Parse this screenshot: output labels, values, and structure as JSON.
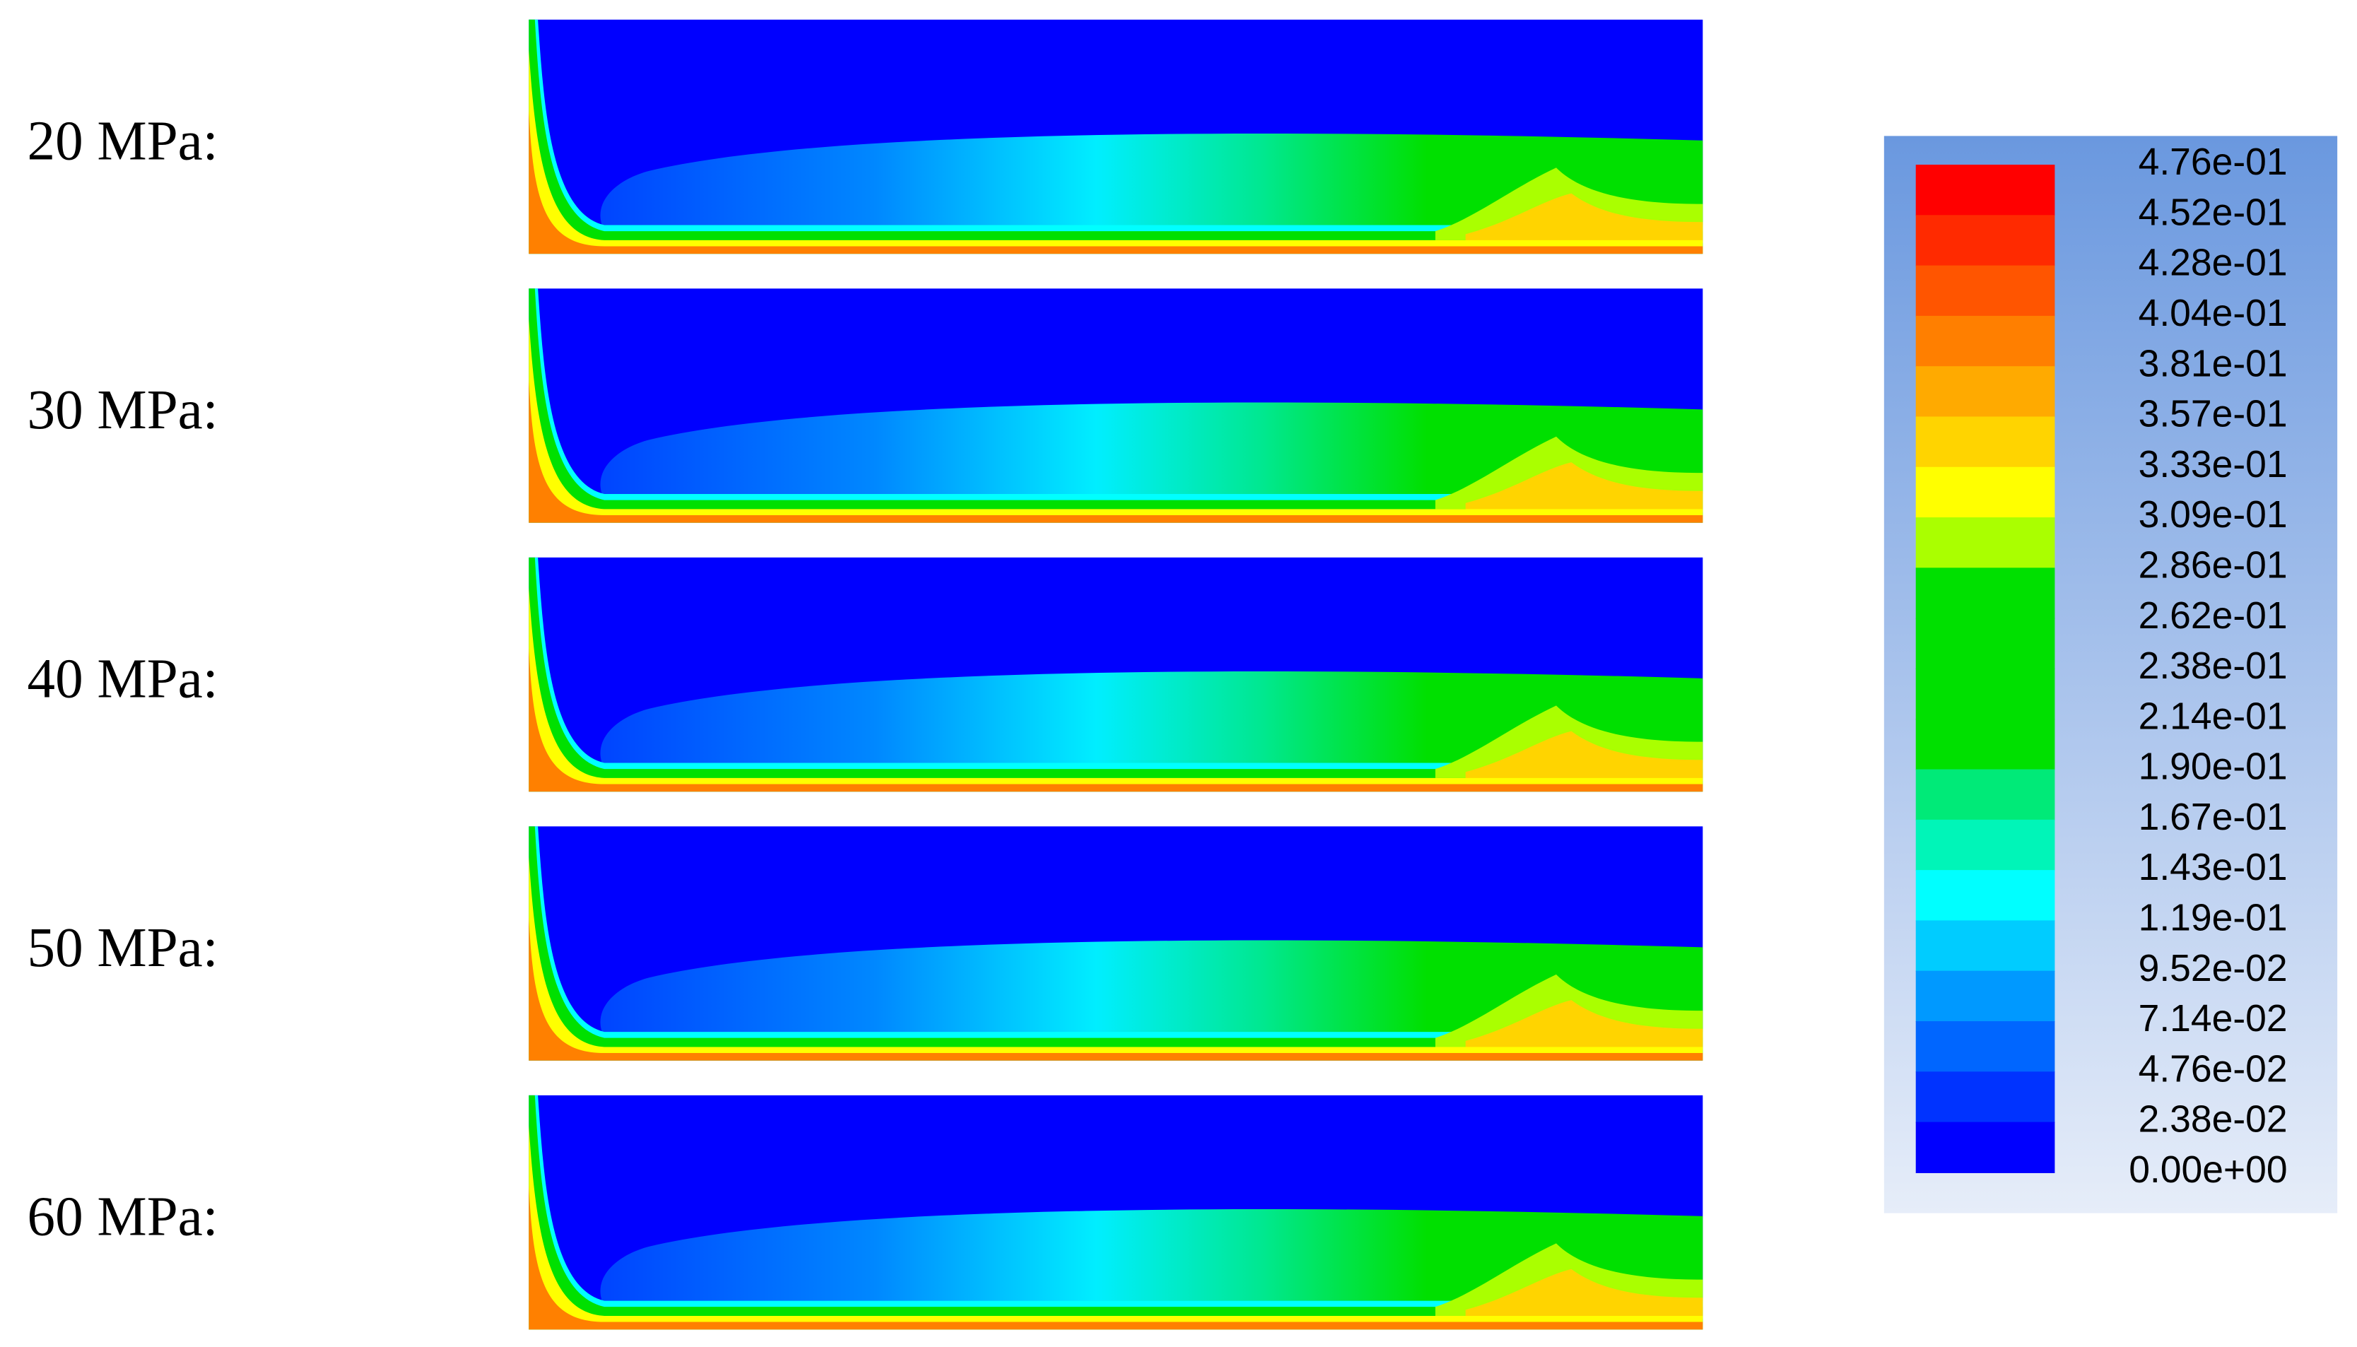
{
  "panels": [
    {
      "label": "20 MPa:"
    },
    {
      "label": "30 MPa:"
    },
    {
      "label": "40 MPa:"
    },
    {
      "label": "50 MPa:"
    },
    {
      "label": "60 MPa:"
    }
  ],
  "legend": {
    "labels": [
      "4.76e-01",
      "4.52e-01",
      "4.28e-01",
      "4.04e-01",
      "3.81e-01",
      "3.57e-01",
      "3.33e-01",
      "3.09e-01",
      "2.86e-01",
      "2.62e-01",
      "2.38e-01",
      "2.14e-01",
      "1.90e-01",
      "1.67e-01",
      "1.43e-01",
      "1.19e-01",
      "9.52e-02",
      "7.14e-02",
      "4.76e-02",
      "2.38e-02",
      "0.00e+00"
    ]
  }
}
